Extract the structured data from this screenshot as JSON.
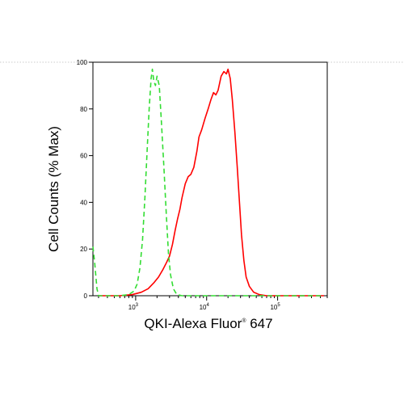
{
  "chart_data": {
    "type": "line",
    "title": "",
    "xlabel": "QKI-Alexa Fluor",
    "xlabel_sup": "®",
    "xlabel_suffix": " 647",
    "ylabel": "Cell Counts (% Max)",
    "xscale": "log",
    "xlim": [
      250,
      500000
    ],
    "ylim": [
      0,
      100
    ],
    "y_ticks": [
      0,
      20,
      40,
      60,
      80,
      100
    ],
    "y_tick_labels": [
      "0",
      "20",
      "40",
      "60",
      "80",
      "100"
    ],
    "x_major_ticks": [
      1000,
      10000,
      100000
    ],
    "x_major_tick_labels": [
      {
        "base": "10",
        "exp": "3"
      },
      {
        "base": "10",
        "exp": "4"
      },
      {
        "base": "10",
        "exp": "5"
      }
    ],
    "grid": false,
    "legend": "none",
    "series": [
      {
        "color": "#ff0000",
        "dash": "solid",
        "points": [
          [
            300,
            0
          ],
          [
            600,
            0
          ],
          [
            900,
            0.5
          ],
          [
            1200,
            1.5
          ],
          [
            1500,
            3
          ],
          [
            1800,
            5.5
          ],
          [
            2100,
            8
          ],
          [
            2400,
            11
          ],
          [
            2700,
            14
          ],
          [
            3000,
            17
          ],
          [
            3300,
            22
          ],
          [
            3600,
            28
          ],
          [
            3900,
            33
          ],
          [
            4200,
            37
          ],
          [
            4500,
            42
          ],
          [
            5000,
            48
          ],
          [
            5500,
            51
          ],
          [
            6000,
            52
          ],
          [
            6600,
            55
          ],
          [
            7300,
            62
          ],
          [
            7800,
            68
          ],
          [
            8500,
            71
          ],
          [
            9500,
            76
          ],
          [
            10500,
            80
          ],
          [
            11500,
            84
          ],
          [
            12500,
            87
          ],
          [
            13500,
            86
          ],
          [
            14500,
            88
          ],
          [
            16000,
            94
          ],
          [
            17500,
            96
          ],
          [
            19000,
            95
          ],
          [
            20000,
            97
          ],
          [
            21500,
            93
          ],
          [
            23000,
            84
          ],
          [
            25000,
            70
          ],
          [
            27000,
            55
          ],
          [
            29000,
            40
          ],
          [
            31000,
            26
          ],
          [
            33500,
            15
          ],
          [
            36000,
            8
          ],
          [
            40000,
            4
          ],
          [
            46000,
            1.5
          ],
          [
            55000,
            0.5
          ],
          [
            70000,
            0
          ],
          [
            100000,
            0
          ],
          [
            200000,
            0
          ],
          [
            450000,
            0
          ]
        ]
      },
      {
        "color": "#33dd33",
        "dash": "dashed",
        "points": [
          [
            250,
            21
          ],
          [
            265,
            14
          ],
          [
            285,
            3
          ],
          [
            300,
            0
          ],
          [
            400,
            0
          ],
          [
            600,
            0
          ],
          [
            800,
            0.5
          ],
          [
            950,
            2
          ],
          [
            1050,
            5
          ],
          [
            1150,
            12
          ],
          [
            1250,
            24
          ],
          [
            1350,
            42
          ],
          [
            1450,
            62
          ],
          [
            1550,
            80
          ],
          [
            1650,
            93
          ],
          [
            1720,
            97
          ],
          [
            1800,
            92
          ],
          [
            1900,
            90
          ],
          [
            2000,
            94
          ],
          [
            2150,
            90
          ],
          [
            2300,
            75
          ],
          [
            2500,
            55
          ],
          [
            2700,
            35
          ],
          [
            2900,
            18
          ],
          [
            3100,
            9
          ],
          [
            3400,
            3
          ],
          [
            3800,
            0.5
          ],
          [
            4500,
            0
          ],
          [
            10000,
            0
          ],
          [
            100000,
            0
          ],
          [
            450000,
            0
          ]
        ]
      }
    ]
  }
}
